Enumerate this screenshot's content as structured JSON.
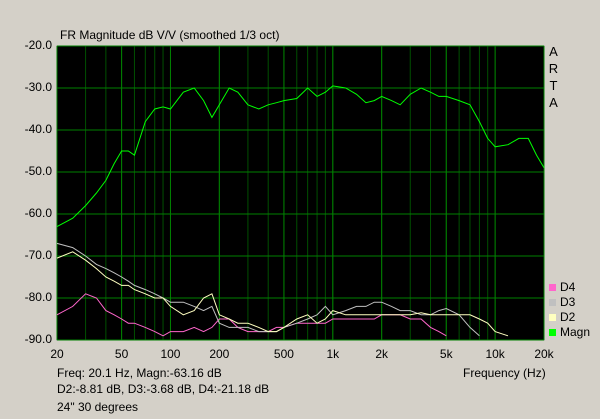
{
  "chart_data": {
    "type": "line",
    "title": "FR Magnitude dB V/V (smoothed 1/3 oct)",
    "side_label": "ARTA",
    "x_label": "Frequency (Hz)",
    "annotations": [
      "Freq: 20.1 Hz, Magn:-63.16 dB",
      "D2:-8.81 dB, D3:-3.68 dB, D4:-21.18 dB",
      "24\" 30 degrees"
    ],
    "log_x": true,
    "grid": true,
    "xlim": [
      20,
      20000
    ],
    "ylim": [
      -90,
      -20
    ],
    "xticks": [
      20,
      50,
      100,
      200,
      500,
      {
        "value": 1000,
        "label": "1k"
      },
      {
        "value": 2000,
        "label": "2k"
      },
      {
        "value": 5000,
        "label": "5k"
      },
      {
        "value": 10000,
        "label": "10k"
      },
      {
        "value": 20000,
        "label": "20k"
      }
    ],
    "yticks": [
      {
        "value": -20,
        "label": "-20.0"
      },
      {
        "value": -30,
        "label": "-30.0"
      },
      {
        "value": -40,
        "label": "-40.0"
      },
      {
        "value": -50,
        "label": "-50.0"
      },
      {
        "value": -60,
        "label": "-60.0"
      },
      {
        "value": -70,
        "label": "-70.0"
      },
      {
        "value": -80,
        "label": "-80.0"
      },
      {
        "value": -90,
        "label": "-90.0"
      }
    ],
    "x": [
      20,
      25,
      30,
      35,
      40,
      45,
      50,
      55,
      60,
      70,
      80,
      90,
      100,
      120,
      140,
      160,
      180,
      200,
      230,
      260,
      300,
      350,
      400,
      450,
      500,
      600,
      700,
      800,
      900,
      1000,
      1200,
      1400,
      1600,
      1800,
      2000,
      2300,
      2600,
      3000,
      3500,
      4000,
      4500,
      5000,
      6000,
      7000,
      8000,
      9000,
      10000,
      12000,
      14000,
      16000,
      18000,
      20000
    ],
    "series": [
      {
        "name": "D4",
        "color": "#ff66cc",
        "values": [
          -84,
          -82,
          -79,
          -80,
          -83,
          -84,
          -85,
          -86,
          -86,
          -87,
          -88,
          -89,
          -88,
          -88,
          -87,
          -88,
          -87,
          -85,
          -85,
          -87,
          -88,
          -88,
          -88,
          -87,
          -87,
          -86,
          -86,
          -86,
          -86,
          -85,
          -85,
          -85,
          -85,
          -85,
          -84,
          -84,
          -84,
          -85,
          -85,
          -87,
          -88,
          -89,
          null,
          null,
          null,
          null,
          null,
          null,
          null,
          null,
          null,
          null
        ]
      },
      {
        "name": "D3",
        "color": "#c0c0c0",
        "values": [
          -67,
          -68,
          -70,
          -72,
          -73,
          -74,
          -75,
          -76,
          -77,
          -78,
          -79,
          -80,
          -81,
          -81,
          -82,
          -83,
          -82,
          -86,
          -87,
          -87,
          -87,
          -88,
          -88,
          -88,
          -87,
          -86,
          -85,
          -84,
          -82,
          -84,
          -83,
          -82,
          -82,
          -81,
          -81,
          -82,
          -83,
          -83,
          -84,
          -84,
          -83,
          -82.5,
          -84,
          -87,
          -89,
          null,
          null,
          null,
          null,
          null,
          null,
          null
        ]
      },
      {
        "name": "D2",
        "color": "#ffffc0",
        "values": [
          -70.5,
          -69,
          -71,
          -73,
          -75,
          -76,
          -77,
          -77,
          -78,
          -79,
          -80,
          -80,
          -82,
          -84,
          -83,
          -80,
          -79,
          -84,
          -85,
          -86,
          -86,
          -87,
          -88,
          -88,
          -87,
          -85,
          -84,
          -86,
          -85,
          -83,
          -84,
          -84,
          -84,
          -84,
          -84,
          -84,
          -84,
          -84,
          -83.5,
          -84,
          -84,
          -84,
          -84,
          -84,
          -85,
          -86,
          -88,
          -89,
          null,
          null,
          null,
          null
        ]
      },
      {
        "name": "Magn",
        "color": "#00ff00",
        "values": [
          -63,
          -61,
          -58,
          -55,
          -52,
          -48,
          -45,
          -45,
          -46,
          -38,
          -35,
          -34.5,
          -35,
          -31,
          -30,
          -33,
          -37,
          -34,
          -30,
          -31,
          -34,
          -35,
          -34,
          -33.5,
          -33,
          -32.5,
          -30,
          -32,
          -31,
          -29.5,
          -30,
          -31.5,
          -33.5,
          -33,
          -32,
          -33,
          -34,
          -31.5,
          -30,
          -31,
          -32,
          -32,
          -33,
          -34,
          -38,
          -42,
          -44,
          -43.5,
          -42,
          -42,
          -46,
          -49
        ]
      }
    ]
  }
}
